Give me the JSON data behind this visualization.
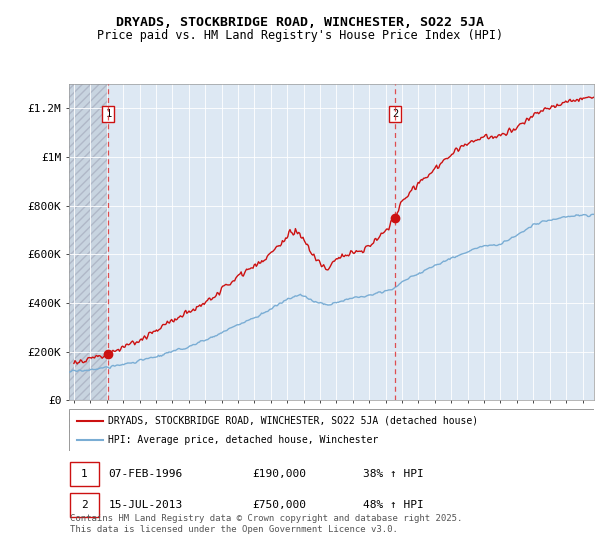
{
  "title": "DRYADS, STOCKBRIDGE ROAD, WINCHESTER, SO22 5JA",
  "subtitle": "Price paid vs. HM Land Registry's House Price Index (HPI)",
  "sale1_date_str": "07-FEB-1996",
  "sale1_price_str": "£190,000",
  "sale1_pct_str": "38% ↑ HPI",
  "sale2_date_str": "15-JUL-2013",
  "sale2_price_str": "£750,000",
  "sale2_pct_str": "48% ↑ HPI",
  "hpi_color": "#7aadd4",
  "property_color": "#cc1111",
  "dashed_line_color": "#dd3333",
  "background_plot": "#dde8f3",
  "background_hatched": "#c8d4e0",
  "ylim": [
    0,
    1300000
  ],
  "xlim_start": 1993.7,
  "xlim_end": 2025.7,
  "legend_label_property": "DRYADS, STOCKBRIDGE ROAD, WINCHESTER, SO22 5JA (detached house)",
  "legend_label_hpi": "HPI: Average price, detached house, Winchester",
  "footer": "Contains HM Land Registry data © Crown copyright and database right 2025.\nThis data is licensed under the Open Government Licence v3.0.",
  "yticks": [
    0,
    200000,
    400000,
    600000,
    800000,
    1000000,
    1200000
  ],
  "ytick_labels": [
    "£0",
    "£200K",
    "£400K",
    "£600K",
    "£800K",
    "£1M",
    "£1.2M"
  ]
}
